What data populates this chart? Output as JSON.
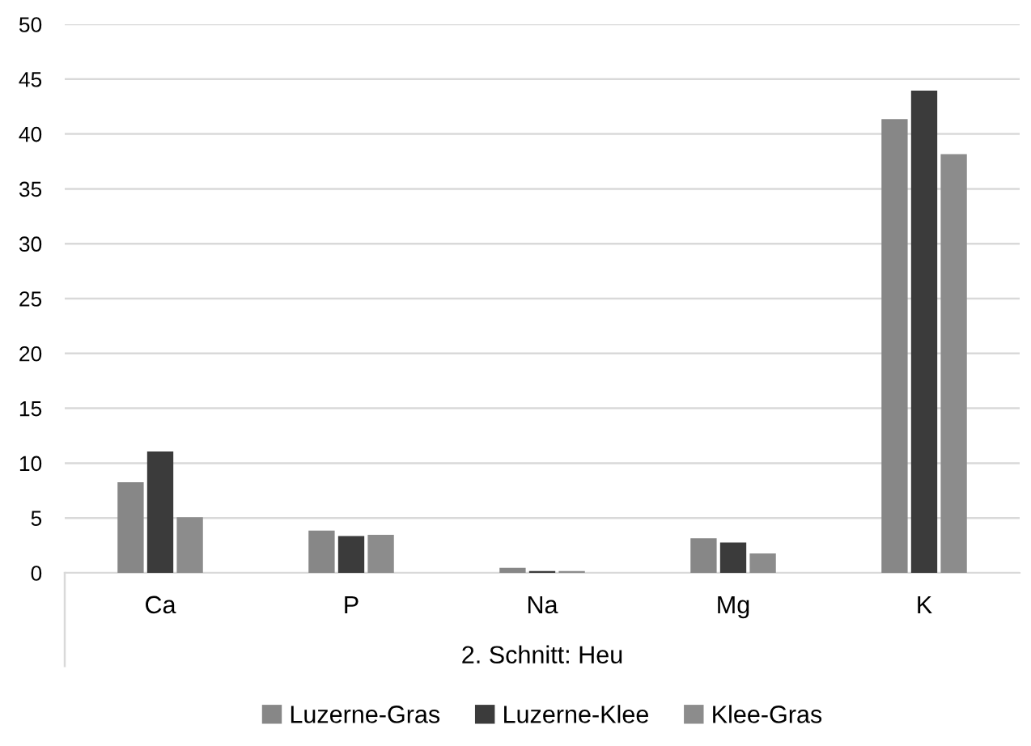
{
  "chart_data": {
    "type": "bar",
    "categories": [
      "Ca",
      "P",
      "Na",
      "Mg",
      "K"
    ],
    "xlabel": "2. Schnitt: Heu",
    "series": [
      {
        "name": "Luzerne-Gras",
        "color": "#878787",
        "values": [
          8.2,
          3.8,
          0.4,
          3.1,
          41.3
        ]
      },
      {
        "name": "Luzerne-Klee",
        "color": "#3b3b3b",
        "values": [
          11.0,
          3.3,
          0.1,
          2.7,
          43.9
        ]
      },
      {
        "name": "Klee-Gras",
        "color": "#8c8c8c",
        "values": [
          5.0,
          3.4,
          0.1,
          1.7,
          38.1
        ]
      }
    ],
    "ylim": [
      0,
      50
    ],
    "yticks": [
      0,
      5,
      10,
      15,
      20,
      25,
      30,
      35,
      40,
      45,
      50
    ],
    "grid": "y",
    "legend": "bottom"
  }
}
